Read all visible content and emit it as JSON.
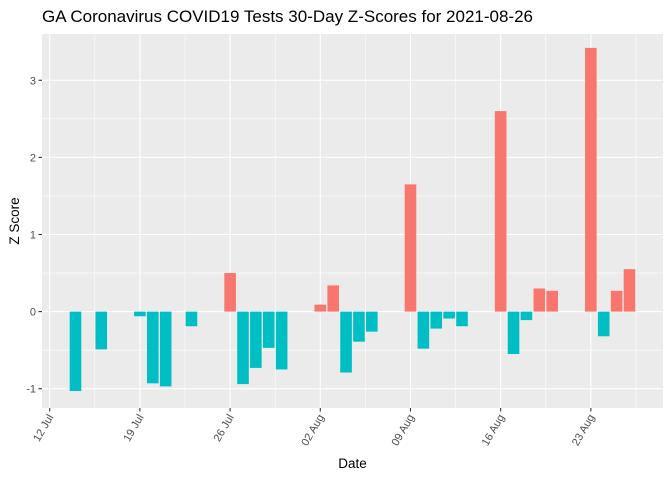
{
  "chart_data": {
    "type": "bar",
    "title": "GA Coronavirus COVID19 Tests 30-Day Z-Scores for 2021-08-26",
    "xlabel": "Date",
    "ylabel": "Z Score",
    "ylim": [
      -1.25,
      3.6
    ],
    "y_ticks": [
      -1,
      0,
      1,
      2,
      3
    ],
    "x_ticks": [
      {
        "label": "12 Jul",
        "day": 0
      },
      {
        "label": "19 Jul",
        "day": 7
      },
      {
        "label": "26 Jul",
        "day": 14
      },
      {
        "label": "02 Aug",
        "day": 21
      },
      {
        "label": "09 Aug",
        "day": 28
      },
      {
        "label": "16 Aug",
        "day": 35
      },
      {
        "label": "23 Aug",
        "day": 42
      }
    ],
    "xlim_days": [
      -0.6,
      47.6
    ],
    "x_origin_date": "2021-07-12",
    "legend": "none",
    "colors": {
      "positive": "#F8766D",
      "negative": "#00BFC4"
    },
    "values": [
      {
        "date": "2021-07-14",
        "day": 2,
        "z": -1.03
      },
      {
        "date": "2021-07-16",
        "day": 4,
        "z": -0.49
      },
      {
        "date": "2021-07-19",
        "day": 7,
        "z": -0.06
      },
      {
        "date": "2021-07-20",
        "day": 8,
        "z": -0.93
      },
      {
        "date": "2021-07-21",
        "day": 9,
        "z": -0.97
      },
      {
        "date": "2021-07-23",
        "day": 11,
        "z": -0.19
      },
      {
        "date": "2021-07-26",
        "day": 14,
        "z": 0.5
      },
      {
        "date": "2021-07-27",
        "day": 15,
        "z": -0.94
      },
      {
        "date": "2021-07-28",
        "day": 16,
        "z": -0.73
      },
      {
        "date": "2021-07-29",
        "day": 17,
        "z": -0.47
      },
      {
        "date": "2021-07-30",
        "day": 18,
        "z": -0.75
      },
      {
        "date": "2021-08-02",
        "day": 21,
        "z": 0.09
      },
      {
        "date": "2021-08-03",
        "day": 22,
        "z": 0.34
      },
      {
        "date": "2021-08-04",
        "day": 23,
        "z": -0.79
      },
      {
        "date": "2021-08-05",
        "day": 24,
        "z": -0.39
      },
      {
        "date": "2021-08-06",
        "day": 25,
        "z": -0.26
      },
      {
        "date": "2021-08-09",
        "day": 28,
        "z": 1.65
      },
      {
        "date": "2021-08-10",
        "day": 29,
        "z": -0.48
      },
      {
        "date": "2021-08-11",
        "day": 30,
        "z": -0.22
      },
      {
        "date": "2021-08-12",
        "day": 31,
        "z": -0.09
      },
      {
        "date": "2021-08-13",
        "day": 32,
        "z": -0.19
      },
      {
        "date": "2021-08-16",
        "day": 35,
        "z": 2.6
      },
      {
        "date": "2021-08-17",
        "day": 36,
        "z": -0.55
      },
      {
        "date": "2021-08-18",
        "day": 37,
        "z": -0.11
      },
      {
        "date": "2021-08-19",
        "day": 38,
        "z": 0.3
      },
      {
        "date": "2021-08-20",
        "day": 39,
        "z": 0.27
      },
      {
        "date": "2021-08-23",
        "day": 42,
        "z": 3.42
      },
      {
        "date": "2021-08-24",
        "day": 43,
        "z": -0.32
      },
      {
        "date": "2021-08-25",
        "day": 44,
        "z": 0.27
      },
      {
        "date": "2021-08-26",
        "day": 45,
        "z": 0.55
      }
    ]
  }
}
